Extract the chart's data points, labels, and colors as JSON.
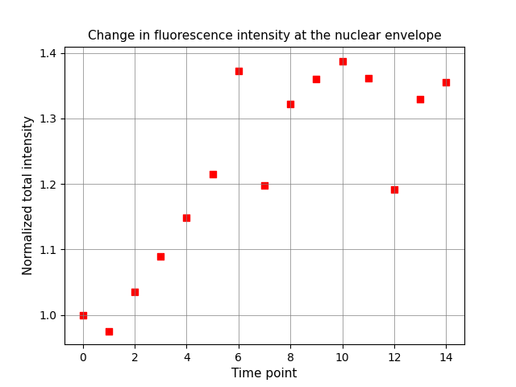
{
  "x": [
    0,
    1,
    2,
    3,
    4,
    5,
    6,
    7,
    8,
    9,
    10,
    11,
    12,
    13,
    14
  ],
  "y": [
    1.0,
    0.975,
    1.035,
    1.09,
    1.148,
    1.215,
    1.372,
    1.198,
    1.322,
    1.36,
    1.387,
    1.362,
    1.192,
    1.33,
    1.355
  ],
  "title": "Change in fluorescence intensity at the nuclear envelope",
  "xlabel": "Time point",
  "ylabel": "Normalized total intensity",
  "marker": "s",
  "marker_color": "red",
  "marker_size": 40,
  "xlim": [
    -0.7,
    14.7
  ],
  "ylim": [
    0.955,
    1.41
  ],
  "xticks": [
    0,
    2,
    4,
    6,
    8,
    10,
    12,
    14
  ],
  "yticks": [
    1.0,
    1.1,
    1.2,
    1.3,
    1.4
  ],
  "grid": true,
  "background_color": "#ffffff",
  "title_fontsize": 11,
  "label_fontsize": 11
}
